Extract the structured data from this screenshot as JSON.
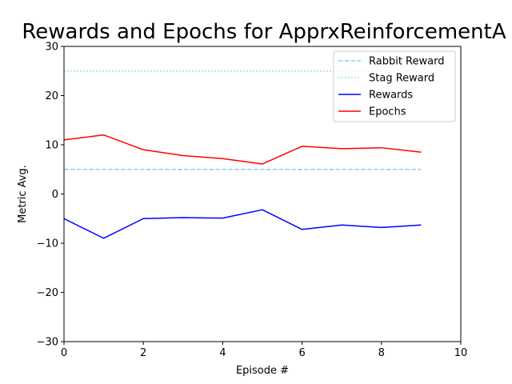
{
  "chart_data": {
    "type": "line",
    "title": "Rewards and Epochs for ApprxReinforcementA",
    "xlabel": "Episode #",
    "ylabel": "Metric Avg.",
    "xlim": [
      0,
      10
    ],
    "ylim": [
      -30,
      30
    ],
    "xticks": [
      "0",
      "2",
      "4",
      "6",
      "8",
      "10"
    ],
    "yticks": [
      "−30",
      "−20",
      "−10",
      "0",
      "10",
      "20",
      "30"
    ],
    "xtick_values": [
      0,
      2,
      4,
      6,
      8,
      10
    ],
    "ytick_values": [
      -30,
      -20,
      -10,
      0,
      10,
      20,
      30
    ],
    "grid": false,
    "legend_position": "top-right",
    "series": [
      {
        "name": "Rabbit Reward",
        "style": "dashed",
        "color": "#87ceeb",
        "x": [
          0,
          9
        ],
        "values": [
          5,
          5
        ]
      },
      {
        "name": "Stag Reward",
        "style": "dotted",
        "color": "#87ceeb",
        "x": [
          0,
          9
        ],
        "values": [
          25,
          25
        ]
      },
      {
        "name": "Rewards",
        "style": "solid",
        "color": "#0000ff",
        "x": [
          0,
          1,
          2,
          3,
          4,
          5,
          6,
          7,
          8,
          9
        ],
        "values": [
          -5.0,
          -9.0,
          -5.0,
          -4.8,
          -4.9,
          -3.2,
          -7.2,
          -6.3,
          -6.8,
          -6.3
        ]
      },
      {
        "name": "Epochs",
        "style": "solid",
        "color": "#ff0000",
        "x": [
          0,
          1,
          2,
          3,
          4,
          5,
          6,
          7,
          8,
          9
        ],
        "values": [
          11.0,
          12.0,
          9.0,
          7.8,
          7.2,
          6.1,
          9.7,
          9.2,
          9.4,
          8.5
        ]
      }
    ]
  }
}
